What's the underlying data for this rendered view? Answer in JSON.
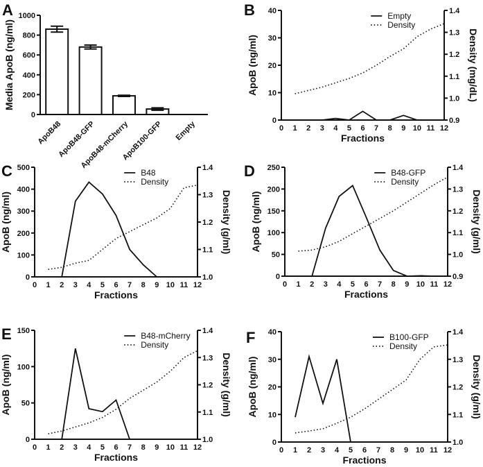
{
  "chart_data": [
    {
      "panel": "A",
      "type": "bar",
      "ylabel": "Media ApoB (ng/ml)",
      "ylim": [
        0,
        1000
      ],
      "yticks": [
        0,
        200,
        400,
        600,
        800,
        1000
      ],
      "categories": [
        "ApoB48",
        "ApoB48-GFP",
        "ApoB48-mCherry",
        "ApoB100-GFP",
        "Empty"
      ],
      "values": [
        860,
        680,
        188,
        55,
        0
      ],
      "errors": [
        30,
        20,
        6,
        12,
        0
      ]
    },
    {
      "panel": "B",
      "type": "line",
      "xlabel": "Fractions",
      "ylabel": "ApoB (ng/ml)",
      "y2label": "Density (mg/dL)",
      "xlim": [
        0,
        12
      ],
      "xticks": [
        0,
        1,
        2,
        3,
        4,
        5,
        6,
        7,
        8,
        9,
        10,
        11,
        12
      ],
      "ylim": [
        0,
        40
      ],
      "yticks": [
        0,
        10,
        20,
        30,
        40
      ],
      "y2lim": [
        0.9,
        1.4
      ],
      "y2ticks": [
        "0.9",
        "1.0",
        "1.1",
        "1.2",
        "1.3",
        "1.4"
      ],
      "series": [
        {
          "name": "Empty",
          "axis": "left",
          "style": "solid",
          "x": [
            1,
            2,
            3,
            4,
            5,
            6,
            7,
            8,
            9,
            10,
            11,
            12
          ],
          "y": [
            0,
            0,
            0,
            0.6,
            0,
            3.2,
            0,
            0,
            1.7,
            0,
            0,
            0
          ]
        },
        {
          "name": "Density",
          "axis": "right",
          "style": "dotted",
          "x": [
            1,
            2,
            3,
            4,
            5,
            6,
            7,
            8,
            9,
            10,
            11,
            12
          ],
          "y": [
            1.02,
            1.035,
            1.05,
            1.07,
            1.09,
            1.115,
            1.15,
            1.19,
            1.225,
            1.28,
            1.315,
            1.34
          ]
        }
      ]
    },
    {
      "panel": "C",
      "type": "line",
      "xlabel": "Fractions",
      "ylabel": "ApoB (ng/ml)",
      "y2label": "Density (g/ml)",
      "xlim": [
        0,
        12
      ],
      "xticks": [
        0,
        1,
        2,
        3,
        4,
        5,
        6,
        7,
        8,
        9,
        10,
        11,
        12
      ],
      "ylim": [
        0,
        500
      ],
      "yticks": [
        0,
        100,
        200,
        300,
        400,
        500
      ],
      "y2lim": [
        1.0,
        1.4
      ],
      "y2ticks": [
        "1.0",
        "1.1",
        "1.2",
        "1.3",
        "1.4"
      ],
      "series": [
        {
          "name": "B48",
          "axis": "left",
          "style": "solid",
          "x": [
            2,
            3,
            4,
            5,
            6,
            7,
            8,
            9
          ],
          "y": [
            0,
            345,
            432,
            378,
            280,
            125,
            55,
            0
          ]
        },
        {
          "name": "Density",
          "axis": "right",
          "style": "dotted",
          "x": [
            1,
            2,
            3,
            4,
            5,
            6,
            7,
            8,
            9,
            10,
            11,
            12
          ],
          "y": [
            1.027,
            1.035,
            1.05,
            1.06,
            1.1,
            1.14,
            1.165,
            1.19,
            1.215,
            1.25,
            1.325,
            1.335
          ]
        }
      ]
    },
    {
      "panel": "D",
      "type": "line",
      "xlabel": "Fractions",
      "ylabel": "ApoB (ng/ml)",
      "y2label": "Density (g/ml)",
      "xlim": [
        0,
        12
      ],
      "xticks": [
        0,
        1,
        2,
        3,
        4,
        5,
        6,
        7,
        8,
        9,
        10,
        11,
        12
      ],
      "ylim": [
        0,
        250
      ],
      "yticks": [
        0,
        50,
        100,
        150,
        200,
        250
      ],
      "y2lim": [
        0.9,
        1.4
      ],
      "y2ticks": [
        "0.9",
        "1.0",
        "1.1",
        "1.2",
        "1.3",
        "1.4"
      ],
      "series": [
        {
          "name": "B48-GFP",
          "axis": "left",
          "style": "solid",
          "x": [
            2,
            3,
            4,
            5,
            6,
            7,
            8,
            9,
            10,
            11
          ],
          "y": [
            0,
            110,
            183,
            208,
            135,
            60,
            13,
            0,
            1,
            0
          ]
        },
        {
          "name": "Density",
          "axis": "right",
          "style": "dotted",
          "x": [
            1,
            2,
            3,
            4,
            5,
            6,
            7,
            8,
            9,
            10,
            11,
            12
          ],
          "y": [
            1.015,
            1.02,
            1.035,
            1.06,
            1.095,
            1.13,
            1.165,
            1.2,
            1.24,
            1.28,
            1.32,
            1.355
          ]
        }
      ]
    },
    {
      "panel": "E",
      "type": "line",
      "xlabel": "Fractions",
      "ylabel": "ApoB (ng/ml)",
      "y2label": "Density (g/ml)",
      "xlim": [
        0,
        12
      ],
      "xticks": [
        0,
        1,
        2,
        3,
        4,
        5,
        6,
        7,
        8,
        9,
        10,
        11,
        12
      ],
      "ylim": [
        0,
        150
      ],
      "yticks": [
        0,
        50,
        100,
        150
      ],
      "y2lim": [
        1.0,
        1.4
      ],
      "y2ticks": [
        "1.0",
        "1.1",
        "1.2",
        "1.3",
        "1.4"
      ],
      "series": [
        {
          "name": "B48-mCherry",
          "axis": "left",
          "style": "solid",
          "x": [
            2,
            3,
            4,
            5,
            6,
            7
          ],
          "y": [
            0,
            125,
            42,
            38,
            54,
            0
          ]
        },
        {
          "name": "Density",
          "axis": "right",
          "style": "dotted",
          "x": [
            1,
            2,
            3,
            4,
            5,
            6,
            7,
            8,
            9,
            10,
            11,
            12
          ],
          "y": [
            1.02,
            1.03,
            1.045,
            1.06,
            1.08,
            1.11,
            1.15,
            1.18,
            1.21,
            1.25,
            1.3,
            1.325
          ]
        }
      ]
    },
    {
      "panel": "F",
      "type": "line",
      "xlabel": "Fractions",
      "ylabel": "ApoB (ng/ml)",
      "y2label": "Density (g/ml)",
      "xlim": [
        0,
        12
      ],
      "xticks": [
        0,
        1,
        2,
        3,
        4,
        5,
        6,
        7,
        8,
        9,
        10,
        11,
        12
      ],
      "ylim": [
        0,
        40
      ],
      "yticks": [
        0,
        10,
        20,
        30,
        40
      ],
      "y2lim": [
        1.0,
        1.4
      ],
      "y2ticks": [
        "1.0",
        "1.1",
        "1.2",
        "1.3",
        "1.4"
      ],
      "series": [
        {
          "name": "B100-GFP",
          "axis": "left",
          "style": "solid",
          "x": [
            1,
            2,
            3,
            4,
            5
          ],
          "y": [
            9,
            31,
            14,
            30,
            0
          ]
        },
        {
          "name": "Density",
          "axis": "right",
          "style": "dotted",
          "x": [
            1,
            2,
            3,
            4,
            5,
            6,
            7,
            8,
            9,
            10,
            11,
            12
          ],
          "y": [
            1.033,
            1.04,
            1.048,
            1.068,
            1.09,
            1.12,
            1.155,
            1.19,
            1.225,
            1.3,
            1.345,
            1.352
          ]
        }
      ]
    }
  ]
}
